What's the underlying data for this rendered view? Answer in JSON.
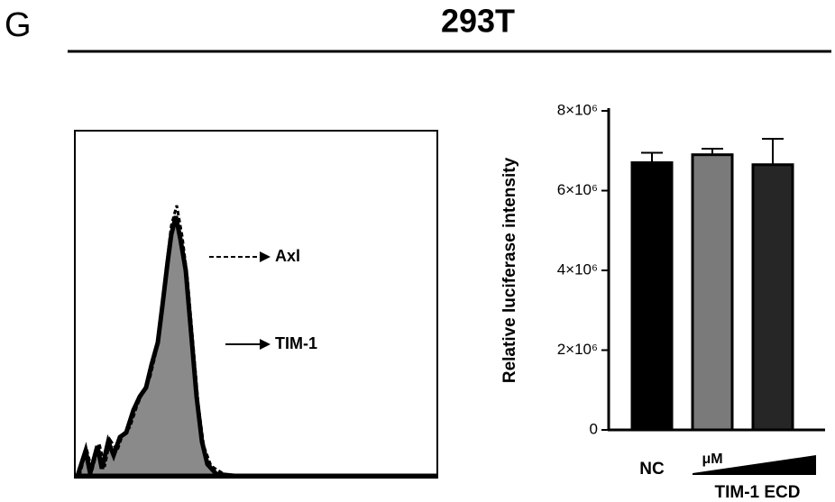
{
  "panel_label": "G",
  "title": "293T",
  "flow": {
    "annotations": [
      "Axl",
      "TIM-1"
    ]
  },
  "chart_data": {
    "type": "bar",
    "ylabel": "Relative luciferase intensity",
    "categories": [
      "NC",
      null,
      null
    ],
    "group_label": "TIM-1 ECD",
    "group_unit": "μM",
    "values": [
      6700000,
      6900000,
      6650000
    ],
    "errors": [
      250000,
      150000,
      650000
    ],
    "colors": [
      "#000000",
      "#7a7a7a",
      "#262626"
    ],
    "ylim": [
      0,
      8000000
    ],
    "yticks": [
      0,
      {
        "value": 2000000,
        "label": "2×10⁶"
      },
      {
        "value": 4000000,
        "label": "4×10⁶"
      },
      {
        "value": 6000000,
        "label": "6×10⁶"
      },
      {
        "value": 8000000,
        "label": "8×10⁶"
      }
    ]
  }
}
